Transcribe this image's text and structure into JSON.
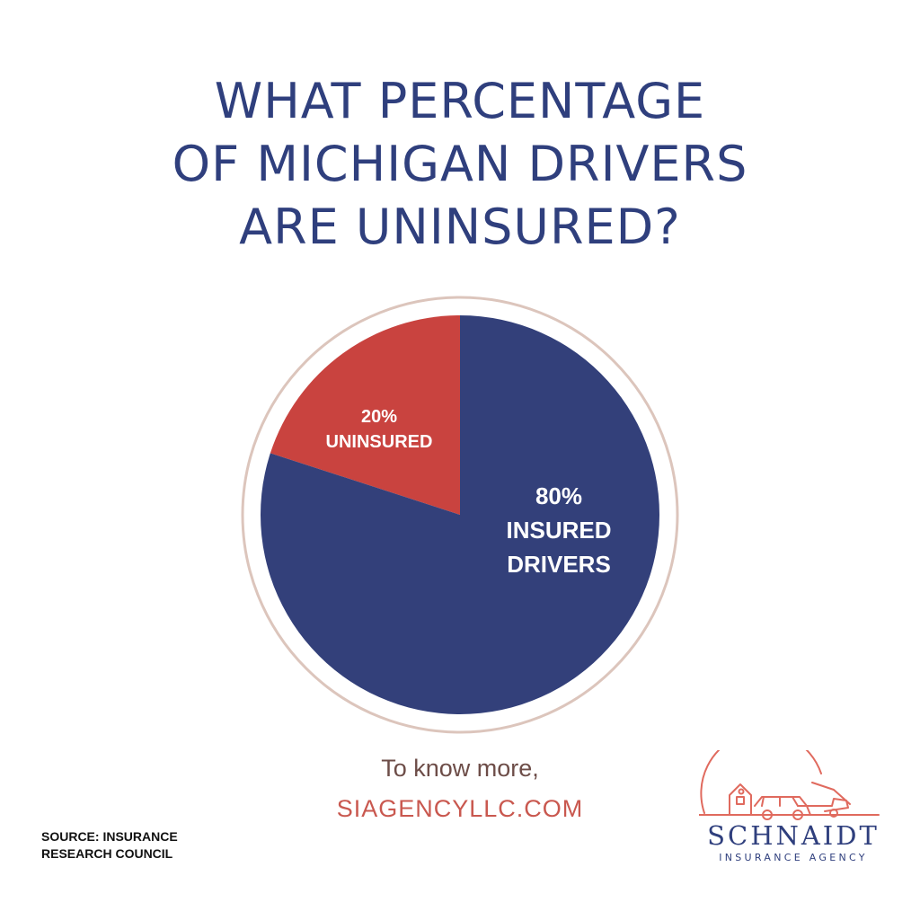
{
  "title_lines": [
    "WHAT PERCENTAGE",
    "OF MICHIGAN DRIVERS",
    "ARE UNINSURED?"
  ],
  "chart_data": {
    "type": "pie",
    "slices": [
      {
        "label_value": "20%",
        "label_text": "UNINSURED",
        "value": 20,
        "color": "#c9433f"
      },
      {
        "label_value": "80%",
        "label_text_lines": [
          "INSURED",
          "DRIVERS"
        ],
        "value": 80,
        "color": "#33407a"
      }
    ],
    "ring_color": "#dcc5bc"
  },
  "cta": {
    "intro": "To know more,",
    "url": "SIAGENCYLLC.COM"
  },
  "source_lines": [
    "SOURCE: INSURANCE",
    "RESEARCH COUNCIL"
  ],
  "logo": {
    "name": "SCHNAIDT",
    "subtitle": "INSURANCE AGENCY",
    "icon": "house-cars-logo-icon",
    "color": "#e06a5e"
  }
}
